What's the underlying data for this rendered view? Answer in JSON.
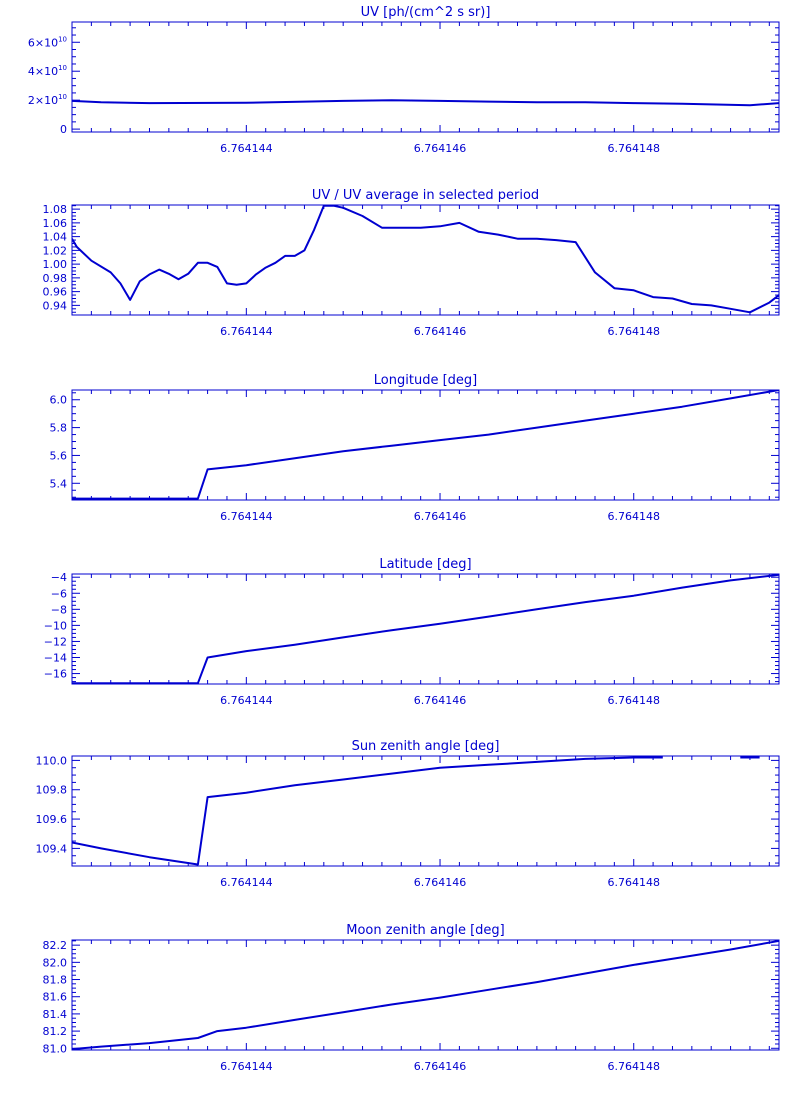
{
  "colors": {
    "plot": "#0000d0",
    "background": "#ffffff"
  },
  "chart_data": [
    {
      "type": "line",
      "title": "UV [ph/(cm^2 s sr)]",
      "xlim": [
        6.7641422,
        6.7641495
      ],
      "ylim": [
        -2000000000.0,
        74000000000.0
      ],
      "x_ticks": [
        6.764144,
        6.764146,
        6.764148
      ],
      "x_tick_labels": [
        "6.764144",
        "6.764146",
        "6.764148"
      ],
      "y_ticks": [
        0,
        20000000000.0,
        40000000000.0,
        60000000000.0
      ],
      "y_tick_labels": [
        {
          "mantissa": "0",
          "exp": ""
        },
        {
          "mantissa": "2×10",
          "exp": "10"
        },
        {
          "mantissa": "4×10",
          "exp": "10"
        },
        {
          "mantissa": "6×10",
          "exp": "10"
        }
      ],
      "series": [
        {
          "x": [
            6.7641422,
            6.7641425,
            6.764143,
            6.764144,
            6.764145,
            6.7641455,
            6.764146,
            6.7641465,
            6.764147,
            6.7641475,
            6.764148,
            6.7641485,
            6.7641492,
            6.7641495
          ],
          "y": [
            19500000000.0,
            18500000000.0,
            18000000000.0,
            18200000000.0,
            19500000000.0,
            20000000000.0,
            19500000000.0,
            19000000000.0,
            18500000000.0,
            18500000000.0,
            18000000000.0,
            17500000000.0,
            16500000000.0,
            18000000000.0
          ]
        }
      ]
    },
    {
      "type": "line",
      "title": "UV / UV average in selected period",
      "xlim": [
        6.7641422,
        6.7641495
      ],
      "ylim": [
        0.926,
        1.086
      ],
      "x_ticks": [
        6.764144,
        6.764146,
        6.764148
      ],
      "x_tick_labels": [
        "6.764144",
        "6.764146",
        "6.764148"
      ],
      "y_ticks": [
        0.94,
        0.96,
        0.98,
        1.0,
        1.02,
        1.04,
        1.06,
        1.08
      ],
      "y_tick_labels": [
        "0.94",
        "0.96",
        "0.98",
        "1.00",
        "1.02",
        "1.04",
        "1.06",
        "1.08"
      ],
      "series": [
        {
          "x": [
            6.7641422,
            6.76414225,
            6.7641424,
            6.7641426,
            6.7641427,
            6.7641428,
            6.7641429,
            6.764143,
            6.7641431,
            6.7641432,
            6.7641433,
            6.7641434,
            6.7641435,
            6.7641436,
            6.7641437,
            6.7641438,
            6.7641439,
            6.764144,
            6.7641441,
            6.7641442,
            6.7641443,
            6.7641444,
            6.7641445,
            6.7641446,
            6.7641447,
            6.7641448,
            6.7641449,
            6.764145,
            6.7641452,
            6.7641454,
            6.7641456,
            6.7641458,
            6.764146,
            6.7641462,
            6.7641464,
            6.7641466,
            6.7641468,
            6.764147,
            6.7641472,
            6.7641474,
            6.7641476,
            6.7641478,
            6.764148,
            6.7641482,
            6.7641484,
            6.7641486,
            6.7641488,
            6.764149,
            6.7641492,
            6.7641494,
            6.7641495
          ],
          "y": [
            1.037,
            1.025,
            1.005,
            0.988,
            0.972,
            0.948,
            0.975,
            0.985,
            0.992,
            0.986,
            0.978,
            0.986,
            1.002,
            1.002,
            0.996,
            0.972,
            0.97,
            0.972,
            0.985,
            0.995,
            1.002,
            1.012,
            1.012,
            1.02,
            1.05,
            1.085,
            1.085,
            1.082,
            1.07,
            1.053,
            1.053,
            1.053,
            1.055,
            1.06,
            1.047,
            1.043,
            1.037,
            1.037,
            1.035,
            1.032,
            0.988,
            0.965,
            0.962,
            0.952,
            0.95,
            0.942,
            0.94,
            0.935,
            0.93,
            0.944,
            0.955
          ]
        }
      ]
    },
    {
      "type": "line",
      "title": "Longitude [deg]",
      "xlim": [
        6.7641422,
        6.7641495
      ],
      "ylim": [
        5.28,
        6.07
      ],
      "x_ticks": [
        6.764144,
        6.764146,
        6.764148
      ],
      "x_tick_labels": [
        "6.764144",
        "6.764146",
        "6.764148"
      ],
      "y_ticks": [
        5.4,
        5.6,
        5.8,
        6.0
      ],
      "y_tick_labels": [
        "5.4",
        "5.6",
        "5.8",
        "6.0"
      ],
      "series": [
        {
          "x": [
            6.7641422,
            6.7641435,
            6.7641436,
            6.764144,
            6.7641445,
            6.764145,
            6.7641455,
            6.764146,
            6.7641465,
            6.764147,
            6.7641475,
            6.764148,
            6.7641485,
            6.764149,
            6.7641495
          ],
          "y": [
            5.29,
            5.29,
            5.5,
            5.53,
            5.58,
            5.63,
            5.67,
            5.71,
            5.75,
            5.8,
            5.85,
            5.9,
            5.95,
            6.01,
            6.07
          ]
        }
      ]
    },
    {
      "type": "line",
      "title": "Latitude [deg]",
      "xlim": [
        6.7641422,
        6.7641495
      ],
      "ylim": [
        -17.3,
        -3.6
      ],
      "x_ticks": [
        6.764144,
        6.764146,
        6.764148
      ],
      "x_tick_labels": [
        "6.764144",
        "6.764146",
        "6.764148"
      ],
      "y_ticks": [
        -16,
        -14,
        -12,
        -10,
        -8,
        -6,
        -4
      ],
      "y_tick_labels": [
        "−16",
        "−14",
        "−12",
        "−10",
        "−8",
        "−6",
        "−4"
      ],
      "series": [
        {
          "x": [
            6.7641422,
            6.7641435,
            6.7641436,
            6.764144,
            6.7641445,
            6.764145,
            6.7641455,
            6.764146,
            6.7641465,
            6.764147,
            6.7641475,
            6.764148,
            6.7641485,
            6.764149,
            6.7641495
          ],
          "y": [
            -17.2,
            -17.2,
            -14.0,
            -13.2,
            -12.4,
            -11.5,
            -10.6,
            -9.8,
            -8.9,
            -8.0,
            -7.1,
            -6.3,
            -5.3,
            -4.4,
            -3.7
          ]
        }
      ]
    },
    {
      "type": "line",
      "title": "Sun zenith angle [deg]",
      "xlim": [
        6.7641422,
        6.7641495
      ],
      "ylim": [
        109.28,
        110.03
      ],
      "x_ticks": [
        6.764144,
        6.764146,
        6.764148
      ],
      "x_tick_labels": [
        "6.764144",
        "6.764146",
        "6.764148"
      ],
      "y_ticks": [
        109.4,
        109.6,
        109.8,
        110.0
      ],
      "y_tick_labels": [
        "109.4",
        "109.6",
        "109.8",
        "110.0"
      ],
      "series": [
        {
          "x": [
            6.7641422,
            6.7641425,
            6.764143,
            6.7641435,
            6.7641436,
            6.764144,
            6.7641445,
            6.764145,
            6.7641455,
            6.764146,
            6.7641465,
            6.764147,
            6.7641475,
            6.764148,
            6.7641483
          ],
          "y": [
            109.44,
            109.4,
            109.34,
            109.29,
            109.75,
            109.78,
            109.83,
            109.87,
            109.91,
            109.95,
            109.97,
            109.99,
            110.01,
            110.02,
            110.02
          ]
        },
        {
          "x": [
            6.7641491,
            6.7641493
          ],
          "y": [
            110.02,
            110.02
          ]
        }
      ]
    },
    {
      "type": "line",
      "title": "Moon zenith angle [deg]",
      "xlim": [
        6.7641422,
        6.7641495
      ],
      "ylim": [
        80.98,
        82.26
      ],
      "x_ticks": [
        6.764144,
        6.764146,
        6.764148
      ],
      "x_tick_labels": [
        "6.764144",
        "6.764146",
        "6.764148"
      ],
      "y_ticks": [
        81.0,
        81.2,
        81.4,
        81.6,
        81.8,
        82.0,
        82.2
      ],
      "y_tick_labels": [
        "81.0",
        "81.2",
        "81.4",
        "81.6",
        "81.8",
        "82.0",
        "82.2"
      ],
      "series": [
        {
          "x": [
            6.7641422,
            6.7641425,
            6.764143,
            6.7641435,
            6.7641437,
            6.764144,
            6.7641445,
            6.764145,
            6.7641455,
            6.764146,
            6.7641465,
            6.764147,
            6.7641475,
            6.764148,
            6.7641485,
            6.764149,
            6.7641495
          ],
          "y": [
            80.99,
            81.02,
            81.06,
            81.12,
            81.2,
            81.24,
            81.33,
            81.42,
            81.51,
            81.59,
            81.68,
            81.77,
            81.87,
            81.97,
            82.06,
            82.15,
            82.25
          ]
        }
      ]
    }
  ]
}
